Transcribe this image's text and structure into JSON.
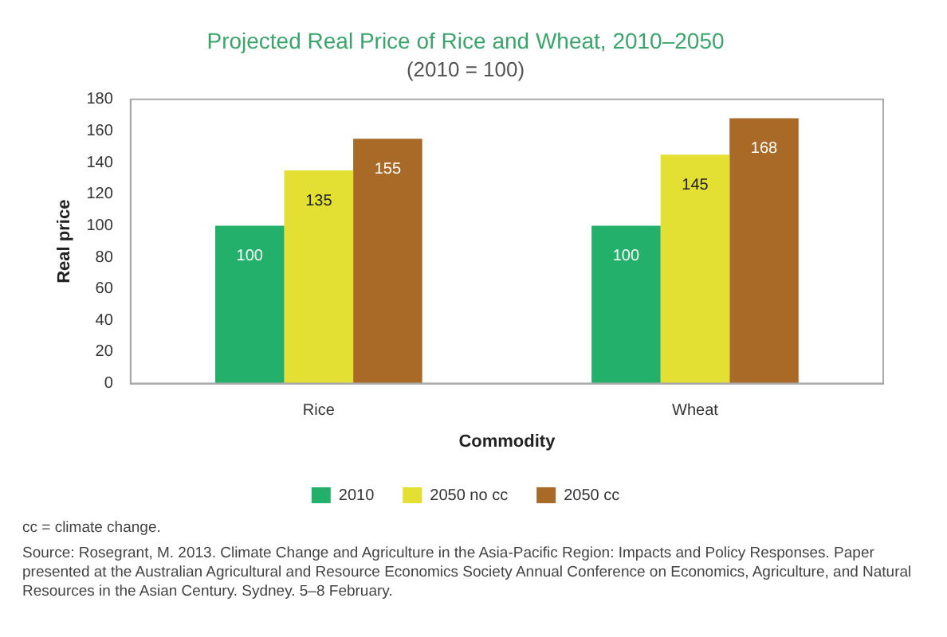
{
  "chart_data": {
    "type": "bar",
    "title": "Projected Real Price of Rice and Wheat, 2010–2050",
    "subtitle": "(2010 = 100)",
    "xlabel": "Commodity",
    "ylabel": "Real price",
    "categories": [
      "Rice",
      "Wheat"
    ],
    "series": [
      {
        "name": "2010",
        "color": "#22b06a",
        "values": [
          100,
          100
        ]
      },
      {
        "name": "2050 no cc",
        "color": "#e3e033",
        "values": [
          135,
          145
        ]
      },
      {
        "name": "2050 cc",
        "color": "#a86a26",
        "values": [
          155,
          168
        ]
      }
    ],
    "ylim": [
      0,
      180
    ],
    "yticks": [
      0,
      20,
      40,
      60,
      80,
      100,
      120,
      140,
      160,
      180
    ],
    "grid": false,
    "legend": "bottom",
    "data_labels": true,
    "annotations": [
      "cc = climate change.",
      "Source: Rosegrant, M. 2013. Climate Change and Agriculture in the Asia-Pacific Region: Impacts and Policy Responses. Paper presented at the Australian Agricultural and Resource Economics Society Annual Conference on Economics, Agriculture, and Natural Resources in the Asian Century. Sydney. 5–8 February."
    ]
  }
}
